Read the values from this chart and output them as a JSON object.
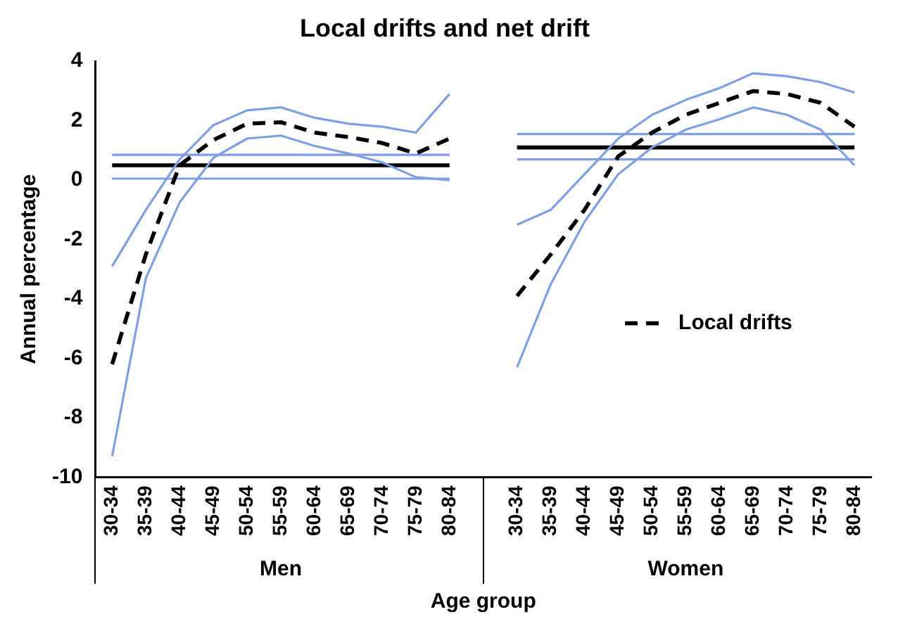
{
  "chart_data": {
    "type": "line",
    "title": "Local drifts and net drift",
    "xlabel": "Age group",
    "ylabel": "Annual percentage",
    "categories": [
      "30-34",
      "35-39",
      "40-44",
      "45-49",
      "50-54",
      "55-59",
      "60-64",
      "65-69",
      "70-74",
      "75-79",
      "80-84",
      null,
      "30-34",
      "35-39",
      "40-44",
      "45-49",
      "50-54",
      "55-59",
      "60-64",
      "65-69",
      "70-74",
      "75-79",
      "80-84"
    ],
    "annotations": [
      "Men",
      "Women"
    ],
    "series": [
      {
        "name": "Local drifts",
        "color": "#000000",
        "line_style": "dashed",
        "values": [
          -6.2,
          -2.5,
          0.5,
          1.35,
          1.9,
          1.95,
          1.6,
          1.45,
          1.25,
          0.9,
          1.4,
          null,
          -3.9,
          -2.5,
          -1.0,
          0.8,
          1.6,
          2.2,
          2.6,
          3.0,
          2.9,
          2.6,
          1.8
        ]
      },
      {
        "color": "#7f9fe0",
        "values": [
          -2.9,
          -1.0,
          0.7,
          1.85,
          2.35,
          2.45,
          2.1,
          1.9,
          1.8,
          1.6,
          2.9,
          null,
          -1.5,
          -1.0,
          0.2,
          1.4,
          2.2,
          2.7,
          3.1,
          3.6,
          3.5,
          3.3,
          2.95
        ]
      },
      {
        "color": "#7f9fe0",
        "values": [
          -9.3,
          -3.3,
          -0.75,
          0.75,
          1.4,
          1.5,
          1.15,
          0.9,
          0.6,
          0.1,
          0.0,
          null,
          -6.3,
          -3.5,
          -1.4,
          0.2,
          1.1,
          1.7,
          2.05,
          2.45,
          2.2,
          1.7,
          0.5
        ]
      },
      {
        "color": "#000000",
        "values": [
          0.5,
          0.5,
          0.5,
          0.5,
          0.5,
          0.5,
          0.5,
          0.5,
          0.5,
          0.5,
          0.5,
          null,
          1.1,
          1.1,
          1.1,
          1.1,
          1.1,
          1.1,
          1.1,
          1.1,
          1.1,
          1.1,
          1.1
        ]
      },
      {
        "color": "#7f9fe0",
        "values": [
          0.85,
          0.85,
          0.85,
          0.85,
          0.85,
          0.85,
          0.85,
          0.85,
          0.85,
          0.85,
          0.85,
          null,
          1.55,
          1.55,
          1.55,
          1.55,
          1.55,
          1.55,
          1.55,
          1.55,
          1.55,
          1.55,
          1.55
        ]
      },
      {
        "color": "#7f9fe0",
        "values": [
          0.05,
          0.05,
          0.05,
          0.05,
          0.05,
          0.05,
          0.05,
          0.05,
          0.05,
          0.05,
          0.05,
          null,
          0.7,
          0.7,
          0.7,
          0.7,
          0.7,
          0.7,
          0.7,
          0.7,
          0.7,
          0.7,
          0.7
        ]
      }
    ],
    "ylim": [
      -10,
      4
    ],
    "yticks": [
      -10,
      -8,
      -6,
      -4,
      -2,
      0,
      2,
      4
    ],
    "grid": false,
    "legend": "bottom right"
  }
}
